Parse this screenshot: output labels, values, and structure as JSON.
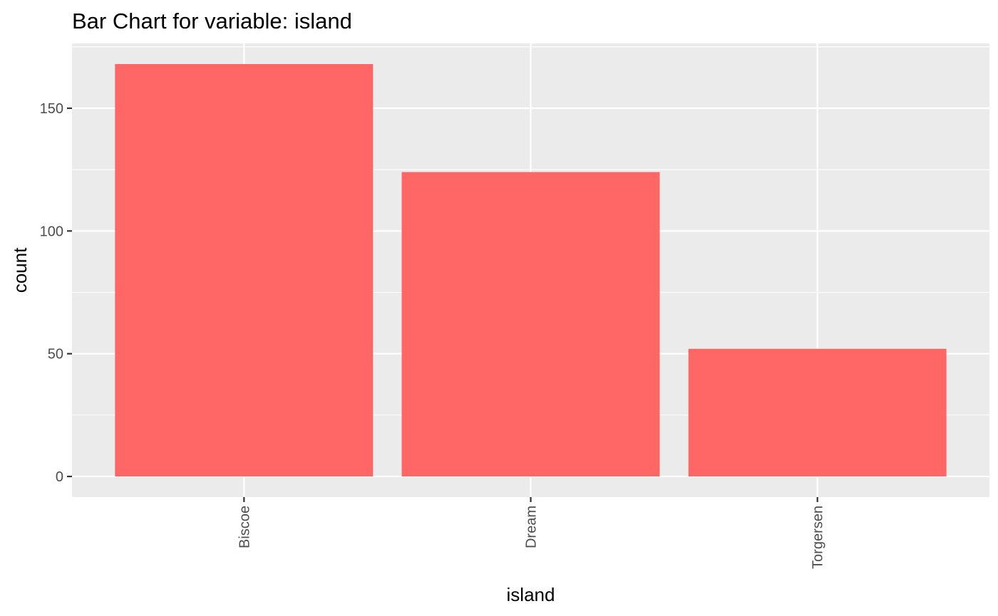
{
  "chart_data": {
    "type": "bar",
    "title": "Bar Chart for variable: island",
    "xlabel": "island",
    "ylabel": "count",
    "categories": [
      "Biscoe",
      "Dream",
      "Torgersen"
    ],
    "values": [
      168,
      124,
      52
    ],
    "yticks": [
      0,
      50,
      100,
      150
    ],
    "ytick_labels": [
      "0",
      "50",
      "100",
      "150"
    ],
    "ylim": [
      -8.4,
      176.4
    ],
    "grid": true,
    "legend": "none",
    "colors": {
      "bar": "#FF6666",
      "panel": "#EBEBEB",
      "grid": "#FFFFFF",
      "tick_text": "#4D4D4D",
      "tick_mark": "#333333"
    }
  }
}
